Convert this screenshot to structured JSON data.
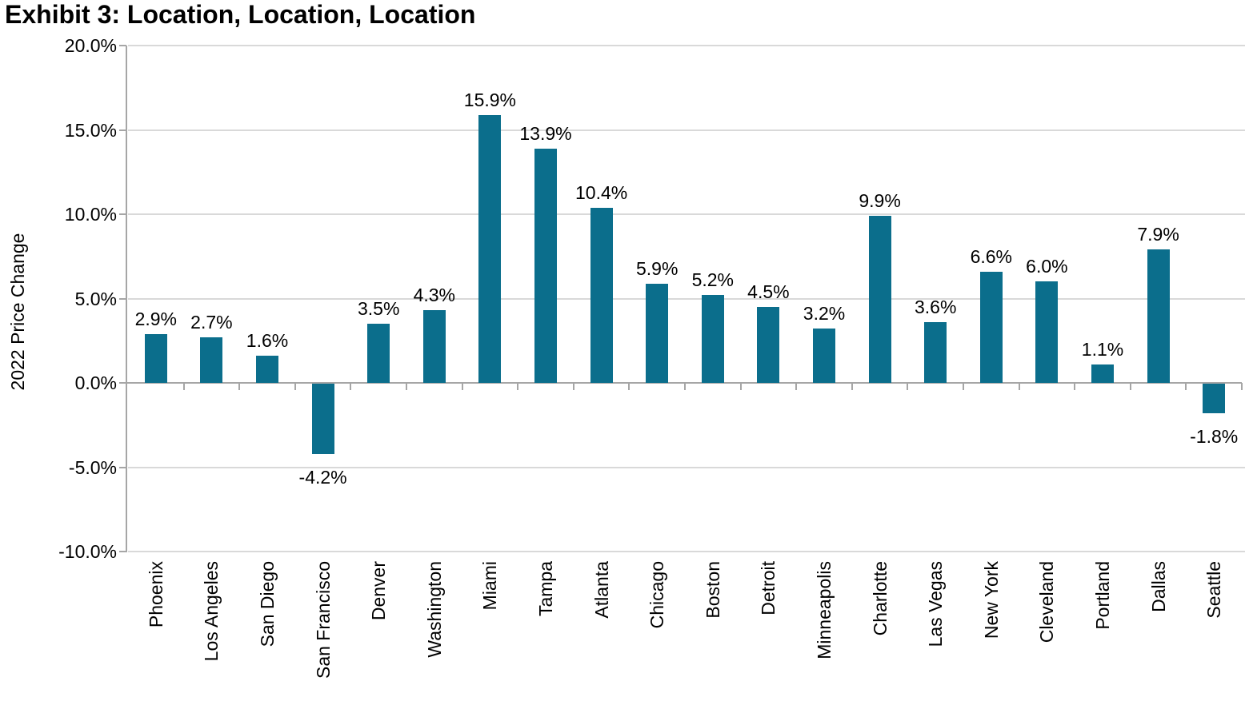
{
  "title": "Exhibit 3: Location, Location, Location",
  "chart_data": {
    "type": "bar",
    "title": "Exhibit 3: Location, Location, Location",
    "xlabel": "",
    "ylabel": "2022 Price Change",
    "categories": [
      "Phoenix",
      "Los Angeles",
      "San Diego",
      "San Francisco",
      "Denver",
      "Washington",
      "Miami",
      "Tampa",
      "Atlanta",
      "Chicago",
      "Boston",
      "Detroit",
      "Minneapolis",
      "Charlotte",
      "Las Vegas",
      "New York",
      "Cleveland",
      "Portland",
      "Dallas",
      "Seattle"
    ],
    "values": [
      2.9,
      2.7,
      1.6,
      -4.2,
      3.5,
      4.3,
      15.9,
      13.9,
      10.4,
      5.9,
      5.2,
      4.5,
      3.2,
      9.9,
      3.6,
      6.6,
      6.0,
      1.1,
      7.9,
      -1.8
    ],
    "value_labels": [
      "2.9%",
      "2.7%",
      "1.6%",
      "-4.2%",
      "3.5%",
      "4.3%",
      "15.9%",
      "13.9%",
      "10.4%",
      "5.9%",
      "5.2%",
      "4.5%",
      "3.2%",
      "9.9%",
      "3.6%",
      "6.6%",
      "6.0%",
      "1.1%",
      "7.9%",
      "-1.8%"
    ],
    "ylim": [
      -10,
      20
    ],
    "yticks": [
      20,
      15,
      10,
      5,
      0,
      -5,
      -10
    ],
    "ytick_labels": [
      "20.0%",
      "15.0%",
      "10.0%",
      "5.0%",
      "0.0%",
      "-5.0%",
      "-10.0%"
    ],
    "grid": true,
    "legend": false,
    "bar_color": "#0b6e8c",
    "gridline_color": "#d9d9d9",
    "axis_color": "#a6a6a6",
    "text_color": "#000000"
  }
}
